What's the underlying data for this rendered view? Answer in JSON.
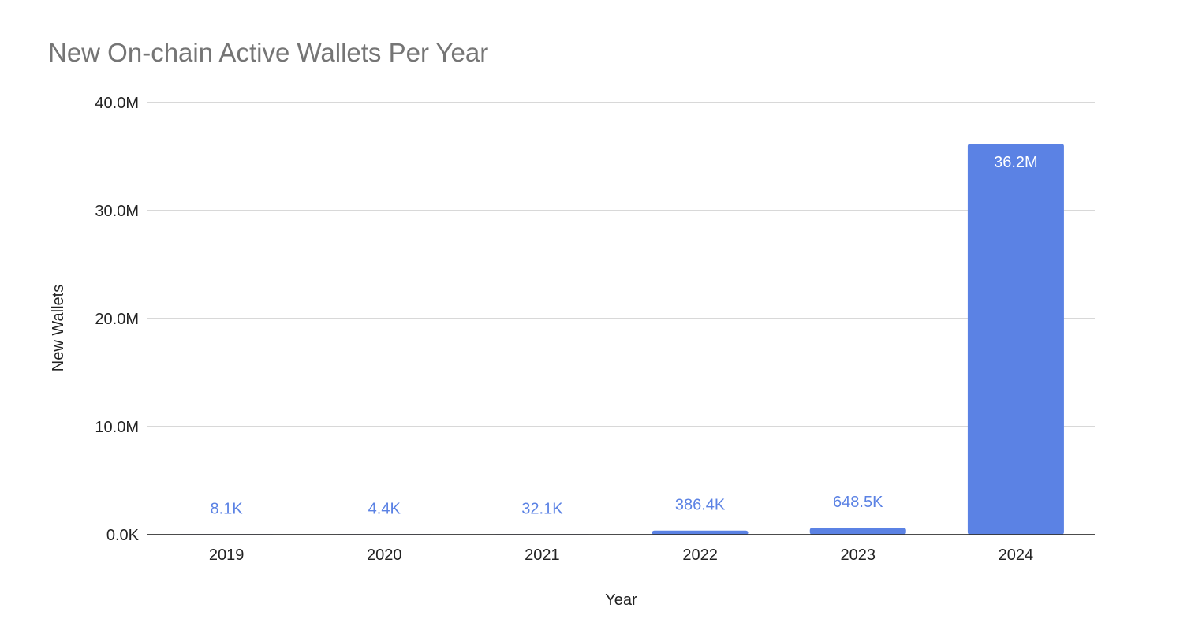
{
  "chart_data": {
    "type": "bar",
    "title": "New On-chain Active Wallets Per Year",
    "xlabel": "Year",
    "ylabel": "New Wallets",
    "categories": [
      "2019",
      "2020",
      "2021",
      "2022",
      "2023",
      "2024"
    ],
    "values": [
      8100,
      4400,
      32100,
      386400,
      648500,
      36200000
    ],
    "data_labels": [
      "8.1K",
      "4.4K",
      "32.1K",
      "386.4K",
      "648.5K",
      "36.2M"
    ],
    "ylim": [
      0,
      40000000
    ],
    "yticks": [
      0,
      10000000,
      20000000,
      30000000,
      40000000
    ],
    "ytick_labels": [
      "0.0K",
      "10.0M",
      "20.0M",
      "30.0M",
      "40.0M"
    ],
    "grid": true,
    "legend": "none",
    "colors": {
      "bar": "#5b82e4",
      "label_outside": "#5b82e4",
      "label_inside": "#ffffff",
      "gridline": "#cccccc",
      "axis": "#333333",
      "title": "#757575"
    }
  }
}
